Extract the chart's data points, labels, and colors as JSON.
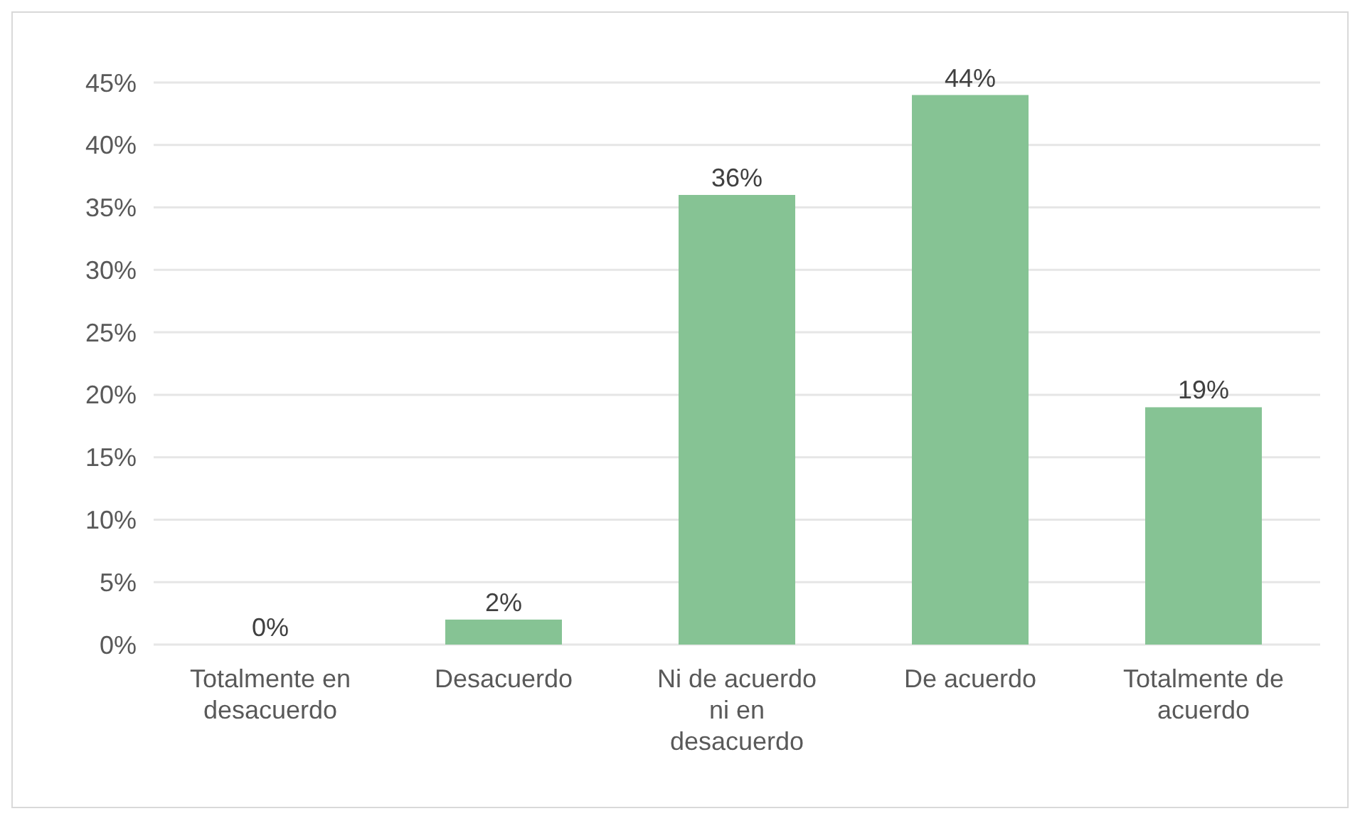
{
  "chart_data": {
    "type": "bar",
    "categories": [
      "Totalmente en desacuerdo",
      "Desacuerdo",
      "Ni de acuerdo ni en desacuerdo",
      "De acuerdo",
      "Totalmente de acuerdo"
    ],
    "values": [
      0,
      2,
      36,
      44,
      19
    ],
    "value_labels": [
      "0%",
      "2%",
      "36%",
      "44%",
      "19%"
    ],
    "color": "#86c394",
    "ylim": [
      0,
      45
    ],
    "yticks": [
      {
        "value": 0,
        "label": "0%"
      },
      {
        "value": 5,
        "label": "5%"
      },
      {
        "value": 10,
        "label": "10%"
      },
      {
        "value": 15,
        "label": "15%"
      },
      {
        "value": 20,
        "label": "20%"
      },
      {
        "value": 25,
        "label": "25%"
      },
      {
        "value": 30,
        "label": "30%"
      },
      {
        "value": 35,
        "label": "35%"
      },
      {
        "value": 40,
        "label": "40%"
      },
      {
        "value": 45,
        "label": "45%"
      }
    ],
    "grid": "y"
  }
}
